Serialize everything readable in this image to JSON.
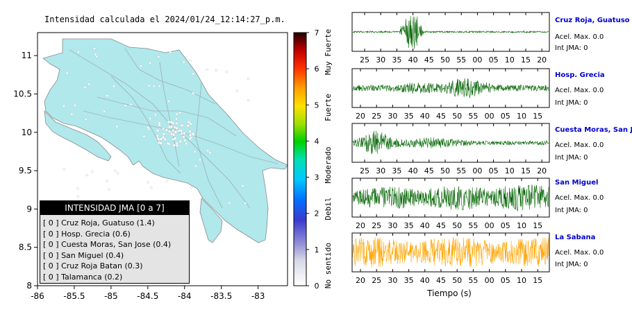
{
  "map": {
    "title": "Intensidad calculada el 2024/01/24_12:14:27_p.m.",
    "x_ticks": [
      "-86",
      "-85.5",
      "-85",
      "-84.5",
      "-84",
      "-83.5",
      "-83"
    ],
    "y_ticks": [
      "11",
      "10.5",
      "10",
      "9.5",
      "9",
      "8.5",
      "8"
    ],
    "land_color": "#b0e8ec"
  },
  "colorbar": {
    "ticks": [
      "0",
      "1",
      "2",
      "3",
      "4",
      "5",
      "6",
      "7"
    ],
    "labels": [
      "No sentido",
      "Debil",
      "Moderado",
      "Fuerte",
      "Muy Fuerte"
    ]
  },
  "legend": {
    "title": "INTENSIDAD JMA [0 a 7]",
    "items": [
      "[ 0 ]  Cruz Roja, Guatuso (1.4)",
      "[ 0 ]  Hosp. Grecia (0.6)",
      "[ 0 ]  Cuesta Moras, San Jose (0.4)",
      "[ 0 ]  San Miguel (0.4)",
      "[ 0 ]  Cruz Roja Batan (0.3)",
      "[ 0 ]  Talamanca (0.2)"
    ]
  },
  "waveforms": {
    "xlabel": "Tiempo (s)",
    "stations": [
      {
        "name": "Cruz Roja, Guatuso",
        "acel": "Acel. Max. 0.0",
        "int": "Int JMA: 0",
        "color": "#006400",
        "ticks": [
          "25",
          "30",
          "35",
          "40",
          "45",
          "50",
          "55",
          "00",
          "05",
          "10",
          "15",
          "20"
        ]
      },
      {
        "name": "Hosp. Grecia",
        "acel": "Acel. Max. 0.0",
        "int": "Int JMA: 0",
        "color": "#006400",
        "ticks": [
          "20",
          "25",
          "30",
          "35",
          "40",
          "45",
          "50",
          "55",
          "00",
          "05",
          "10",
          "15"
        ]
      },
      {
        "name": "Cuesta Moras, San Jose",
        "acel": "Acel. Max. 0.0",
        "int": "Int JMA: 0",
        "color": "#006400",
        "ticks": [
          "25",
          "30",
          "35",
          "40",
          "45",
          "50",
          "55",
          "00",
          "05",
          "10",
          "15",
          "20"
        ]
      },
      {
        "name": "San Miguel",
        "acel": "Acel. Max. 0.0",
        "int": "Int JMA: 0",
        "color": "#006400",
        "ticks": [
          "20",
          "25",
          "30",
          "35",
          "40",
          "45",
          "50",
          "55",
          "00",
          "05",
          "10",
          "15"
        ]
      },
      {
        "name": "La Sabana",
        "acel": "Acel. Max. 0.0",
        "int": "Int JMA: 0",
        "color": "#ffa500",
        "ticks": [
          "20",
          "25",
          "30",
          "35",
          "40",
          "45",
          "50",
          "55",
          "00",
          "05",
          "10",
          "15"
        ]
      }
    ]
  },
  "chart_data": [
    {
      "type": "heatmap",
      "title": "Intensidad calculada el 2024/01/24_12:14:27_p.m.",
      "xlim": [
        -86,
        -82.6
      ],
      "ylim": [
        8,
        11.3
      ],
      "colorbar_range": [
        0,
        7
      ],
      "legend_position": "bottom-left"
    },
    {
      "type": "line",
      "xlabel": "Tiempo (s)",
      "series": [
        {
          "name": "Cruz Roja, Guatuso"
        },
        {
          "name": "Hosp. Grecia"
        },
        {
          "name": "Cuesta Moras, San Jose"
        },
        {
          "name": "San Miguel"
        },
        {
          "name": "La Sabana"
        }
      ]
    }
  ]
}
